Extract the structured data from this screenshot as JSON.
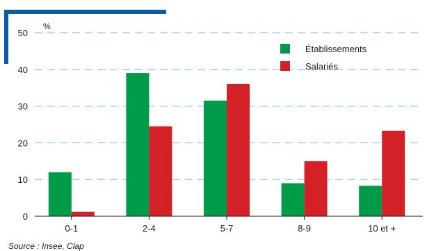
{
  "chart_data": {
    "type": "bar",
    "categories": [
      "0-1",
      "2-4",
      "5-7",
      "8-9",
      "10 et +"
    ],
    "series": [
      {
        "name": "Établissements",
        "values": [
          12,
          39,
          31.5,
          9,
          8.3
        ],
        "color": "#009b48"
      },
      {
        "name": "Salariés",
        "values": [
          1.2,
          24.5,
          36,
          15,
          23.3
        ],
        "color": "#d42127"
      }
    ],
    "y_unit_label": "%",
    "y_ticks": [
      0,
      10,
      20,
      30,
      40,
      50
    ],
    "ylim": [
      0,
      50
    ],
    "grid": true,
    "grid_color": "#8ecbea",
    "accent_color": "#0d5aa7",
    "legend_position": "top-right",
    "source": "Source : Insee, Clap"
  }
}
